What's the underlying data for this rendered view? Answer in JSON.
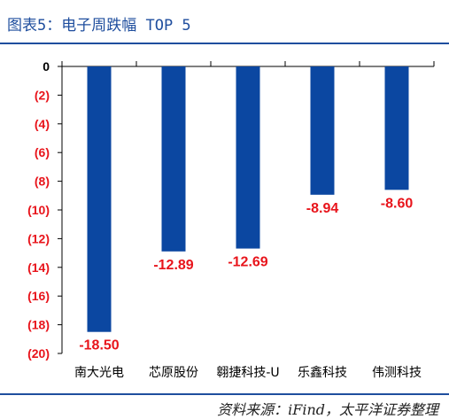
{
  "header": {
    "title": "图表5：电子周跌幅 TOP 5"
  },
  "footer": {
    "source": "资料来源：iFind，太平洋证券整理"
  },
  "colors": {
    "bar": "#0b47a1",
    "negative_label": "#e8141b",
    "tick": "#000000",
    "title": "#1f4e9e"
  },
  "chart_data": {
    "type": "bar",
    "categories": [
      "南大光电",
      "芯原股份",
      "翱捷科技-U",
      "乐鑫科技",
      "伟测科技"
    ],
    "values": [
      -18.5,
      -12.89,
      -12.69,
      -8.94,
      -8.6
    ],
    "data_labels": [
      "-18.50",
      "-12.89",
      "-12.69",
      "-8.94",
      "-8.60"
    ],
    "title": "",
    "xlabel": "",
    "ylabel": "",
    "ylim": [
      -20,
      0
    ],
    "yticks": [
      0,
      -2,
      -4,
      -6,
      -8,
      -10,
      -12,
      -14,
      -16,
      -18,
      -20
    ],
    "ytick_labels": [
      "0",
      "(2)",
      "(4)",
      "(6)",
      "(8)",
      "(10)",
      "(12)",
      "(14)",
      "(16)",
      "(18)",
      "(20)"
    ],
    "grid": false,
    "legend": "none"
  }
}
